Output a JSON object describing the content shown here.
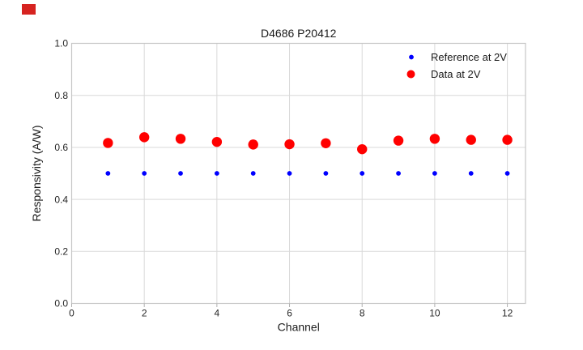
{
  "figure": {
    "title": "D4686 P20412",
    "xlabel": "Channel",
    "ylabel": "Responsivity (A/W)"
  },
  "legend": {
    "items": [
      {
        "label": "Reference at 2V",
        "color": "#0000ff"
      },
      {
        "label": "Data at 2V",
        "color": "#ff0000"
      }
    ]
  },
  "overlay": {
    "marker_color": "#d62320"
  },
  "colors": {
    "grid": "#d9d9d9",
    "spine": "#c6c6c6",
    "tick": "#b0b0b0",
    "background": "#ffffff"
  },
  "chart_data": {
    "type": "scatter",
    "title": "D4686 P20412",
    "xlabel": "Channel",
    "ylabel": "Responsivity (A/W)",
    "xlim": [
      0,
      12.5
    ],
    "ylim": [
      0.0,
      1.0
    ],
    "xticks": [
      0,
      2,
      4,
      6,
      8,
      10,
      12
    ],
    "xticklabels": [
      "0",
      "2",
      "4",
      "6",
      "8",
      "10",
      "12"
    ],
    "yticks": [
      0.0,
      0.2,
      0.4,
      0.6,
      0.8,
      1.0
    ],
    "yticklabels": [
      "0.0",
      "0.2",
      "0.4",
      "0.6",
      "0.8",
      "1.0"
    ],
    "grid": true,
    "legend_position": "upper right",
    "x": [
      1,
      2,
      3,
      4,
      5,
      6,
      7,
      8,
      9,
      10,
      11,
      12
    ],
    "series": [
      {
        "name": "Reference at 2V",
        "color": "#0000ff",
        "marker_radius": 2.9,
        "values": [
          0.5,
          0.5,
          0.5,
          0.5,
          0.5,
          0.5,
          0.5,
          0.5,
          0.5,
          0.5,
          0.5,
          0.5
        ]
      },
      {
        "name": "Data at 2V",
        "color": "#ff0000",
        "marker_radius": 6.2,
        "values": [
          0.617,
          0.639,
          0.633,
          0.621,
          0.611,
          0.612,
          0.616,
          0.593,
          0.626,
          0.633,
          0.629,
          0.629
        ]
      }
    ]
  }
}
